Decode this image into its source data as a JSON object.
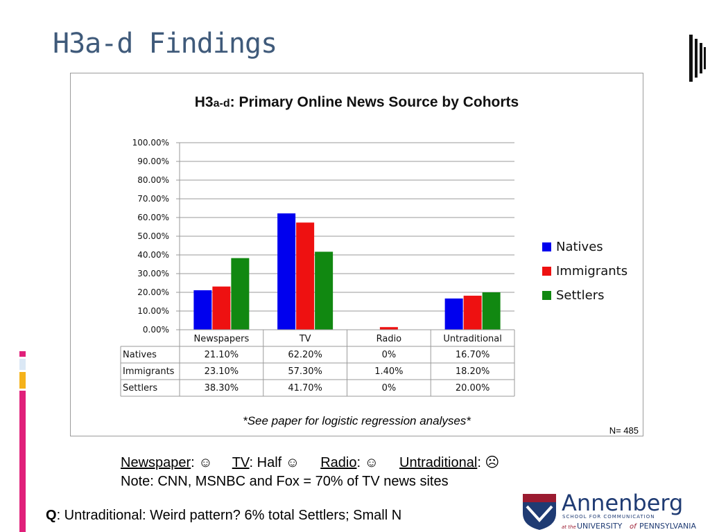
{
  "slide": {
    "title": "H3a-d Findings"
  },
  "colors": {
    "title": "#3f5a7a",
    "natives": "#0000ee",
    "immigrants": "#ee1111",
    "settlers": "#118811",
    "stripe_pink": "#e0207a",
    "stripe_yellow": "#f5b21a",
    "stripe_blue": "#dbe8f5"
  },
  "chart_data": {
    "type": "bar",
    "title_main": "H3",
    "title_sub": "a-d",
    "title_rest": ": Primary Online News Source by Cohorts",
    "categories": [
      "Newspapers",
      "TV",
      "Radio",
      "Untraditional"
    ],
    "series": [
      {
        "name": "Natives",
        "values": [
          21.1,
          62.2,
          0,
          16.7
        ],
        "labels": [
          "21.10%",
          "62.20%",
          "0%",
          "16.70%"
        ]
      },
      {
        "name": "Immigrants",
        "values": [
          23.1,
          57.3,
          1.4,
          18.2
        ],
        "labels": [
          "23.10%",
          "57.30%",
          "1.40%",
          "18.20%"
        ]
      },
      {
        "name": "Settlers",
        "values": [
          38.3,
          41.7,
          0,
          20.0
        ],
        "labels": [
          "38.30%",
          "41.70%",
          "0%",
          "20.00%"
        ]
      }
    ],
    "yticks": [
      "0.00%",
      "10.00%",
      "20.00%",
      "30.00%",
      "40.00%",
      "50.00%",
      "60.00%",
      "70.00%",
      "80.00%",
      "90.00%",
      "100.00%"
    ],
    "ylim": [
      0,
      100
    ],
    "grid": true,
    "legend_position": "right",
    "footnote": "*See paper for logistic regression analyses*",
    "n_label": "N= 485"
  },
  "summary": {
    "newspaper_label": "Newspaper",
    "newspaper_value": ": ☺",
    "tv_label": "TV",
    "tv_value": ": Half ☺",
    "radio_label": "Radio",
    "radio_value": ": ☺",
    "untraditional_label": "Untraditional",
    "untraditional_value": ": ☹",
    "note": "Note: CNN, MSNBC and Fox = 70% of TV news sites",
    "question_bold": "Q",
    "question_text": ": Untraditional: Weird pattern? 6% total Settlers; Small N"
  },
  "logo": {
    "name": "Annenberg",
    "line1": "SCHOOL FOR COMMUNICATION",
    "line2_prefix": "at the",
    "line2_a": "UNIVERSITY",
    "line2_of": "of",
    "line2_b": "PENNSYLVANIA"
  }
}
